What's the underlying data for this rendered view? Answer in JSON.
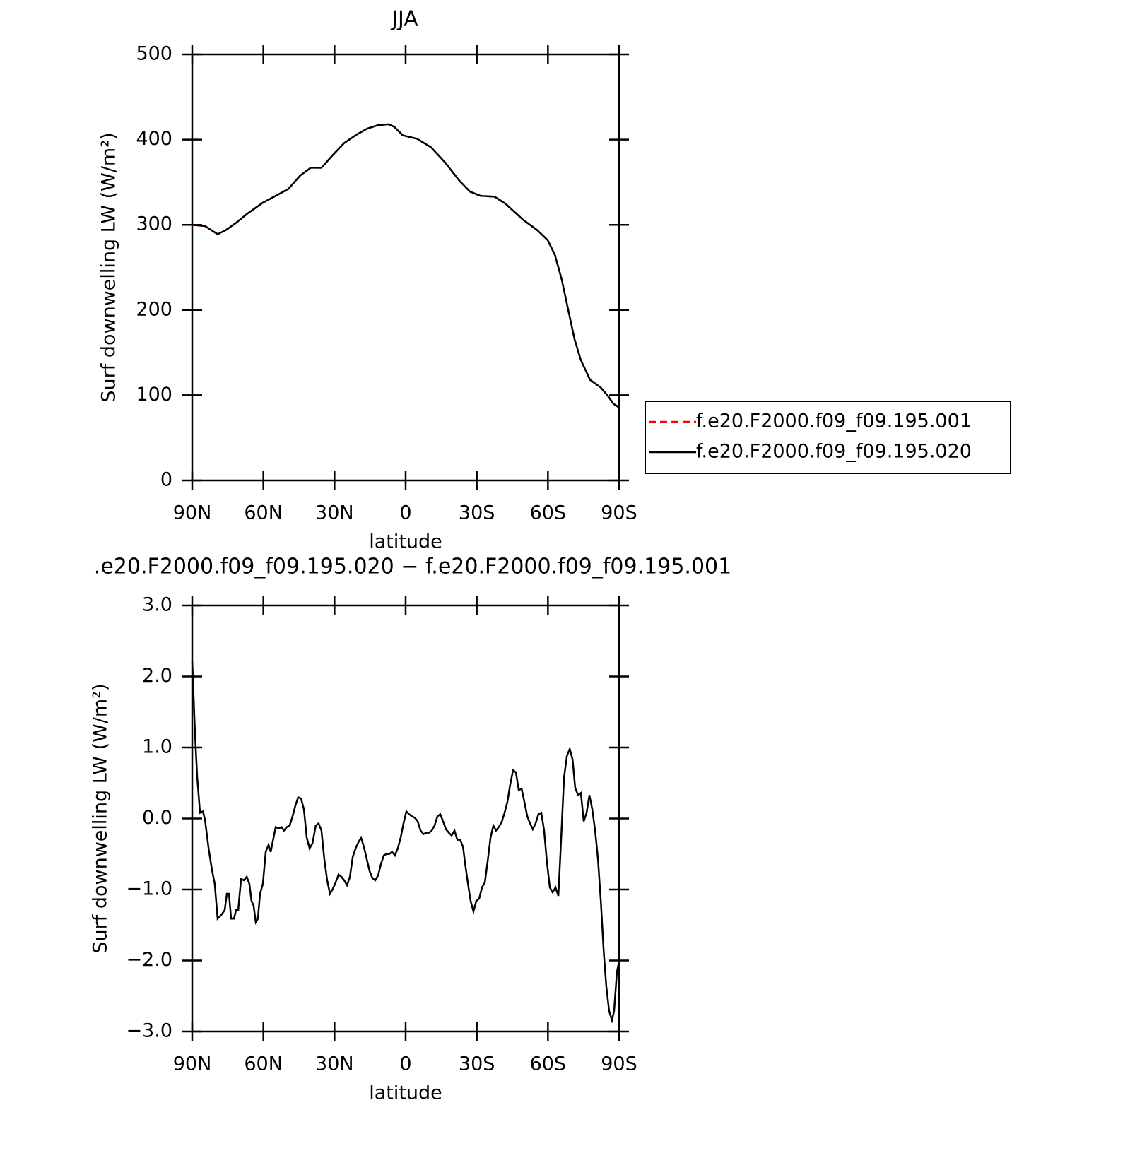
{
  "chart_data": [
    {
      "type": "line",
      "title": "JJA",
      "xlabel": "latitude",
      "ylabel": "Surf downwelling LW (W/m²)",
      "x": [
        90,
        84.6,
        79.3,
        75.7,
        71.2,
        66.8,
        60.2,
        54.8,
        49.5,
        44.4,
        40,
        35.5,
        31,
        25.9,
        20.6,
        16.1,
        11.6,
        7.2,
        4.8,
        1.2,
        -4.8,
        -10.7,
        -16.7,
        -22.6,
        -27.1,
        -31.6,
        -37.5,
        -42,
        -49.5,
        -55.4,
        -59.9,
        -62.9,
        -65.8,
        -68.8,
        -71.2,
        -73.9,
        -77.8,
        -82.3,
        -85.2,
        -87.6,
        -90
      ],
      "series": [
        {
          "name": "f.e20.F2000.f09_f09.195.001",
          "color": "#ff0000",
          "linestyle": "dashed",
          "values": [
            300,
            298.5,
            289,
            294,
            303,
            313,
            326,
            334,
            342,
            358,
            367,
            367,
            381,
            396,
            406,
            413,
            417,
            418,
            415,
            405,
            401,
            391,
            373,
            352,
            339,
            334,
            333,
            325,
            306,
            294,
            282,
            265,
            236,
            197,
            166,
            141,
            118,
            109,
            99.5,
            90,
            86
          ]
        },
        {
          "name": "f.e20.F2000.f09_f09.195.020",
          "color": "#000000",
          "linestyle": "solid",
          "values": [
            300,
            298.5,
            289,
            294,
            303,
            313,
            326,
            334,
            342,
            358,
            367,
            367,
            381,
            396,
            406,
            413,
            417,
            418,
            415,
            405,
            401,
            391,
            373,
            352,
            339,
            334,
            333,
            325,
            306,
            294,
            282,
            265,
            236,
            197,
            166,
            141,
            118,
            109,
            99.5,
            90,
            85.5
          ]
        }
      ],
      "xlim": [
        90,
        -90
      ],
      "xticks": [
        {
          "value": 90,
          "label": "90N"
        },
        {
          "value": 60,
          "label": "60N"
        },
        {
          "value": 30,
          "label": "30N"
        },
        0,
        {
          "value": -30,
          "label": "30S"
        },
        {
          "value": -60,
          "label": "60S"
        },
        {
          "value": -90,
          "label": "90S"
        }
      ],
      "ylim": [
        0,
        500
      ],
      "yticks": [
        0,
        100,
        200,
        300,
        400,
        500
      ],
      "legend": "right"
    },
    {
      "type": "line",
      "title": ".e20.F2000.f09_f09.195.020 − f.e20.F2000.f09_f09.195.001",
      "xlabel": "latitude",
      "ylabel": "Surf downwelling LW (W/m²)",
      "x": [
        90,
        88.8,
        87.9,
        86.7,
        85.5,
        84.6,
        83.1,
        81.7,
        80.5,
        79.3,
        77.8,
        76.3,
        75.4,
        74.5,
        73.6,
        72.4,
        71.5,
        70.6,
        69.4,
        68.2,
        67,
        65.9,
        65,
        64.1,
        63.2,
        62.3,
        61.4,
        60.2,
        59,
        57.8,
        56.9,
        56,
        54.8,
        53.6,
        52.4,
        51.3,
        50.1,
        48.9,
        47.7,
        46.5,
        45.3,
        44.1,
        42.9,
        41.7,
        40.5,
        39.3,
        37.9,
        36.7,
        35.5,
        34.3,
        33.1,
        31.9,
        30.7,
        29.5,
        28.3,
        27.1,
        25.9,
        24.7,
        23.5,
        22.3,
        21.1,
        20,
        18.8,
        17.6,
        16.4,
        15.2,
        14,
        12.8,
        11.6,
        10.4,
        9.2,
        8.1,
        6.9,
        5.7,
        4.5,
        3.3,
        2.1,
        0.9,
        -0.3,
        -1.5,
        -2.7,
        -3.9,
        -5.1,
        -6.3,
        -7.5,
        -8.7,
        -9.9,
        -11,
        -12.2,
        -13.4,
        -14.6,
        -15.8,
        -17,
        -18.2,
        -19.4,
        -20.6,
        -21.8,
        -23,
        -24.2,
        -25.1,
        -26.2,
        -27.4,
        -28.6,
        -29.8,
        -31,
        -32.2,
        -33.4,
        -34.6,
        -35.8,
        -37,
        -38.1,
        -39.3,
        -40.5,
        -41.7,
        -42.9,
        -44.1,
        -45.3,
        -46.5,
        -47.7,
        -48.9,
        -50.1,
        -51.3,
        -52.5,
        -53.6,
        -54.8,
        -56,
        -57.2,
        -58.4,
        -59.6,
        -60.8,
        -62,
        -63.2,
        -64.4,
        -65.6,
        -66.8,
        -68,
        -69.2,
        -70.4,
        -71.5,
        -72.7,
        -73.9,
        -75.1,
        -76.3,
        -77.5,
        -78.7,
        -79.9,
        -81.1,
        -82.3,
        -83.5,
        -84.6,
        -85.8,
        -87,
        -87.9,
        -89.1,
        -90
      ],
      "series": [
        {
          "color": "#000000",
          "linestyle": "solid",
          "values": [
            2.22,
            1.17,
            0.58,
            0.08,
            0.1,
            -0.02,
            -0.42,
            -0.72,
            -0.92,
            -1.41,
            -1.36,
            -1.29,
            -1.06,
            -1.06,
            -1.41,
            -1.41,
            -1.29,
            -1.29,
            -0.85,
            -0.87,
            -0.82,
            -0.92,
            -1.16,
            -1.23,
            -1.46,
            -1.41,
            -1.06,
            -0.92,
            -0.47,
            -0.37,
            -0.47,
            -0.32,
            -0.12,
            -0.14,
            -0.12,
            -0.17,
            -0.12,
            -0.1,
            0.03,
            0.18,
            0.3,
            0.28,
            0.13,
            -0.27,
            -0.42,
            -0.35,
            -0.1,
            -0.07,
            -0.17,
            -0.57,
            -0.87,
            -1.06,
            -0.99,
            -0.9,
            -0.79,
            -0.82,
            -0.87,
            -0.94,
            -0.82,
            -0.54,
            -0.42,
            -0.34,
            -0.27,
            -0.4,
            -0.57,
            -0.74,
            -0.84,
            -0.87,
            -0.8,
            -0.64,
            -0.52,
            -0.5,
            -0.5,
            -0.47,
            -0.52,
            -0.42,
            -0.27,
            -0.07,
            0.1,
            0.06,
            0.03,
            0.01,
            -0.04,
            -0.17,
            -0.22,
            -0.2,
            -0.2,
            -0.17,
            -0.1,
            0.03,
            0.06,
            -0.04,
            -0.15,
            -0.2,
            -0.24,
            -0.17,
            -0.3,
            -0.3,
            -0.4,
            -0.64,
            -0.9,
            -1.16,
            -1.31,
            -1.16,
            -1.13,
            -0.97,
            -0.9,
            -0.6,
            -0.27,
            -0.1,
            -0.17,
            -0.12,
            -0.05,
            0.08,
            0.23,
            0.48,
            0.68,
            0.65,
            0.4,
            0.42,
            0.23,
            0.03,
            -0.07,
            -0.15,
            -0.07,
            0.06,
            0.08,
            -0.17,
            -0.62,
            -0.97,
            -1.04,
            -0.97,
            -1.09,
            -0.27,
            0.58,
            0.88,
            0.98,
            0.83,
            0.43,
            0.33,
            0.36,
            -0.04,
            0.08,
            0.33,
            0.13,
            -0.17,
            -0.57,
            -1.16,
            -1.86,
            -2.36,
            -2.71,
            -2.84,
            -2.71,
            -2.16,
            -2.01
          ]
        }
      ],
      "xlim": [
        90,
        -90
      ],
      "xticks": [
        {
          "value": 90,
          "label": "90N"
        },
        {
          "value": 60,
          "label": "60N"
        },
        {
          "value": 30,
          "label": "30N"
        },
        0,
        {
          "value": -30,
          "label": "30S"
        },
        {
          "value": -60,
          "label": "60S"
        },
        {
          "value": -90,
          "label": "90S"
        }
      ],
      "ylim": [
        -3,
        3
      ],
      "yticks": [
        {
          "value": -3,
          "label": "−3.0"
        },
        {
          "value": -2,
          "label": "−2.0"
        },
        {
          "value": -1,
          "label": "−1.0"
        },
        {
          "value": 0,
          "label": "0.0"
        },
        {
          "value": 1,
          "label": "1.0"
        },
        {
          "value": 2,
          "label": "2.0"
        },
        {
          "value": 3,
          "label": "3.0"
        }
      ]
    }
  ]
}
